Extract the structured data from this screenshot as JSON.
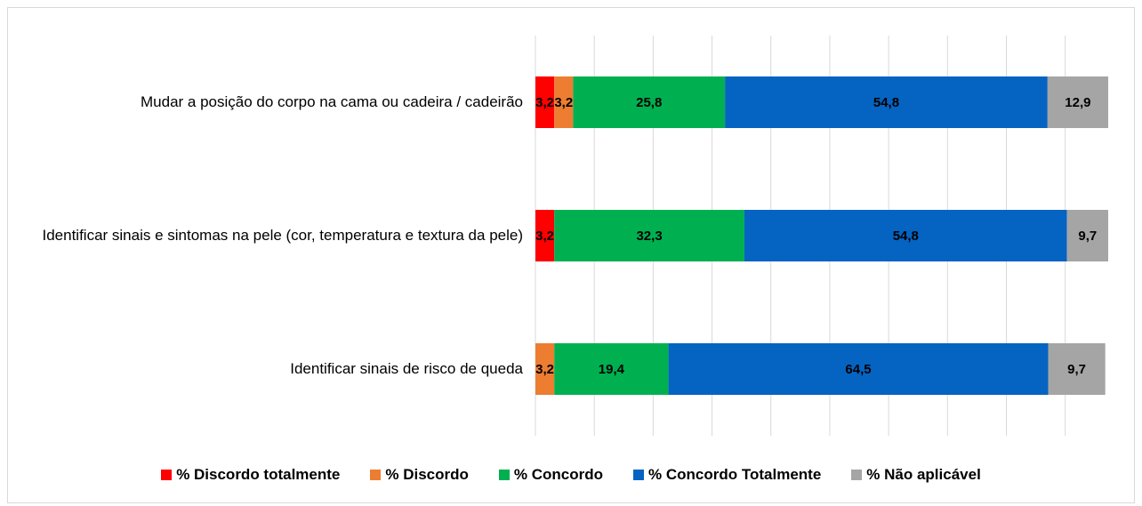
{
  "chart_data": {
    "type": "stacked-bar-horizontal",
    "categories": [
      "Mudar a posição do corpo na cama ou cadeira / cadeirão",
      "Identificar sinais e sintomas na pele (cor, temperatura e textura da pele)",
      "Identificar sinais de risco de queda"
    ],
    "series": [
      {
        "name": "% Discordo totalmente",
        "color": "#ff0000",
        "values": [
          3.2,
          3.2,
          null
        ],
        "value_labels": [
          "3,2",
          "3,2",
          null
        ]
      },
      {
        "name": "% Discordo",
        "color": "#ed7d31",
        "values": [
          3.2,
          null,
          3.2
        ],
        "value_labels": [
          "3,2",
          null,
          "3,2"
        ]
      },
      {
        "name": "% Concordo",
        "color": "#00b050",
        "values": [
          25.8,
          32.3,
          19.4
        ],
        "value_labels": [
          "25,8",
          "32,3",
          "19,4"
        ]
      },
      {
        "name": "% Concordo Totalmente",
        "color": "#0563c1",
        "values": [
          54.8,
          54.8,
          64.5
        ],
        "value_labels": [
          "54,8",
          "54,8",
          "64,5"
        ]
      },
      {
        "name": "% Não aplicável",
        "color": "#a5a5a5",
        "values": [
          12.9,
          9.7,
          9.7
        ],
        "value_labels": [
          "12,9",
          "9,7",
          "9,7"
        ]
      }
    ],
    "xlim": [
      0,
      97.3
    ],
    "xticks": [
      0,
      10,
      20,
      30,
      40,
      50,
      60,
      70,
      80,
      90
    ],
    "grid": true,
    "legend": "bottom"
  }
}
